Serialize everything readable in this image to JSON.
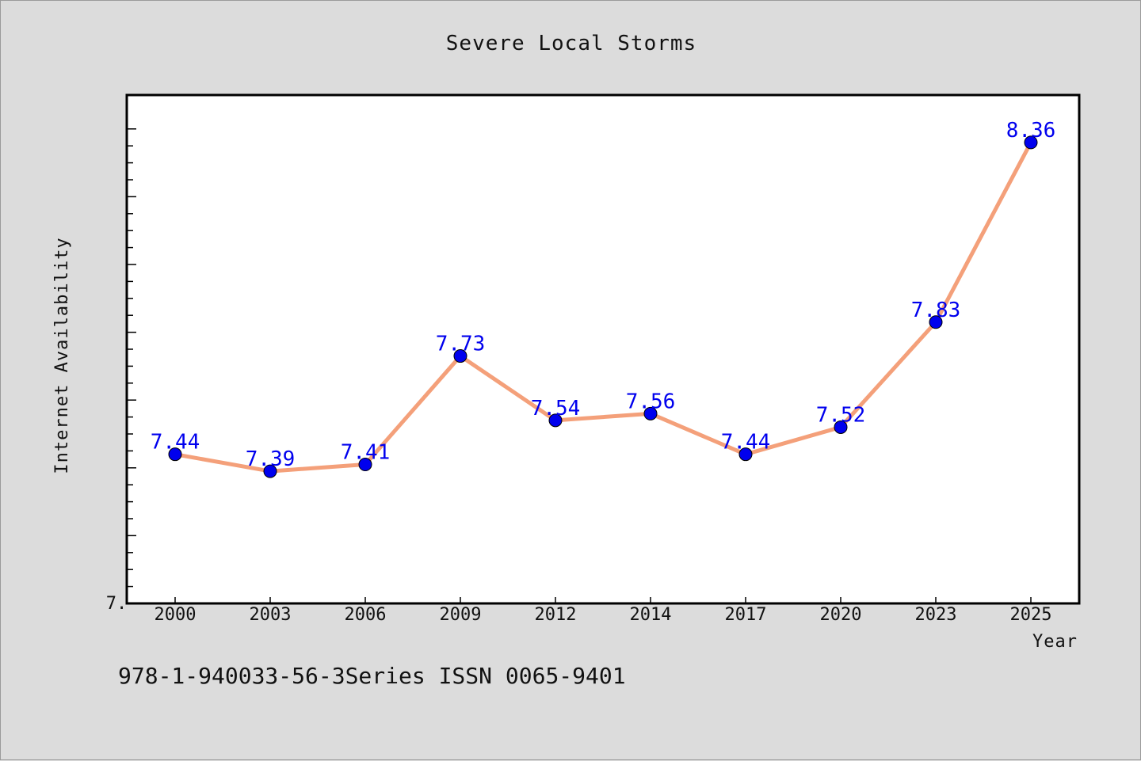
{
  "chart_data": {
    "type": "line",
    "title": "Severe Local Storms",
    "xlabel": "Year",
    "ylabel": "Internet Availability",
    "categories": [
      "2000",
      "2003",
      "2006",
      "2009",
      "2012",
      "2014",
      "2017",
      "2020",
      "2023",
      "2025"
    ],
    "series": [
      {
        "values": [
          7.44,
          7.39,
          7.41,
          7.73,
          7.54,
          7.56,
          7.44,
          7.52,
          7.83,
          8.36
        ],
        "data_labels": [
          "7.44",
          "7.39",
          "7.41",
          "7.73",
          "7.54",
          "7.56",
          "7.44",
          "7.52",
          "7.83",
          "8.36"
        ],
        "line_color": "#f4a07a",
        "marker_color": "#0000ee"
      }
    ],
    "ylim": [
      7.0,
      8.5
    ],
    "y_tick_label": "7.",
    "grid": false
  },
  "footer": {
    "text": "978-1-940033-56-3Series ISSN 0065-9401"
  },
  "colors": {
    "background": "#dcdcdc",
    "plot_background": "#ffffff"
  }
}
